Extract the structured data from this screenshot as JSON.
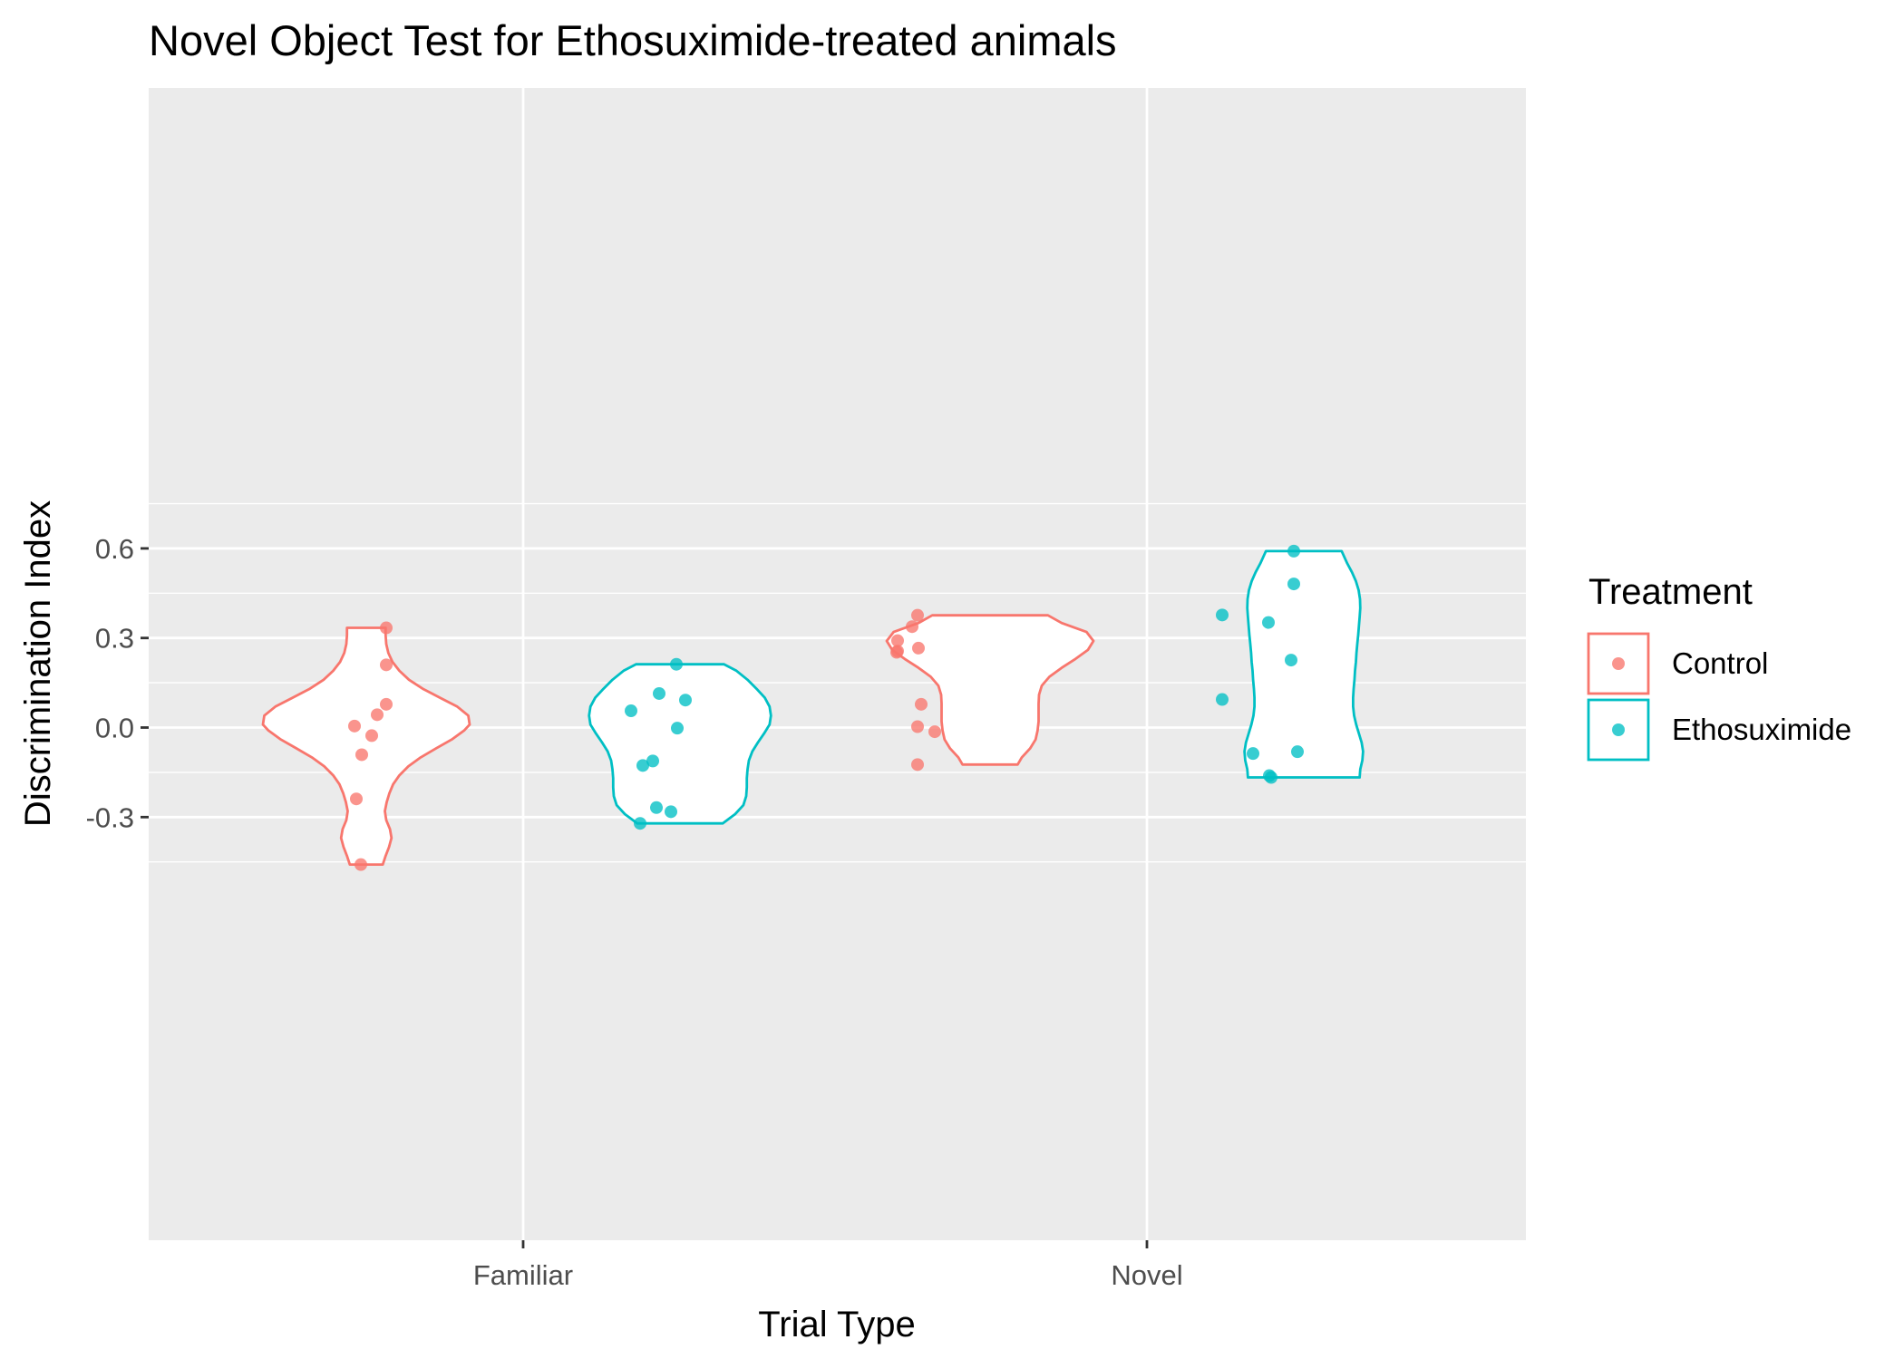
{
  "chart_data": {
    "type": "violin",
    "title": "Novel Object Test for Ethosuximide-treated animals",
    "xlabel": "Trial Type",
    "ylabel": "Discrimination Index",
    "categories": [
      "Familiar",
      "Novel"
    ],
    "ylim": [
      -0.5,
      0.64
    ],
    "yticks": [
      -0.3,
      0.0,
      0.3,
      0.6
    ],
    "yticklabels": [
      "-0.3",
      "0.0",
      "0.3",
      "0.6"
    ],
    "grid": true,
    "legend": {
      "title": "Treatment",
      "position": "right",
      "entries": [
        "Control",
        "Ethosuximide"
      ]
    },
    "series": [
      {
        "name": "Control",
        "color": "#F8766D",
        "groups": [
          {
            "category": "Familiar",
            "points": [
              0.334,
              0.21,
              0.078,
              0.043,
              0.005,
              -0.027,
              -0.091,
              -0.239,
              -0.459
            ],
            "violin_profile": [
              [
                -0.459,
                0.12
              ],
              [
                -0.43,
                0.14
              ],
              [
                -0.4,
                0.165
              ],
              [
                -0.37,
                0.183
              ],
              [
                -0.34,
                0.172
              ],
              [
                -0.31,
                0.145
              ],
              [
                -0.28,
                0.135
              ],
              [
                -0.25,
                0.148
              ],
              [
                -0.22,
                0.168
              ],
              [
                -0.19,
                0.195
              ],
              [
                -0.16,
                0.24
              ],
              [
                -0.13,
                0.305
              ],
              [
                -0.1,
                0.395
              ],
              [
                -0.07,
                0.505
              ],
              [
                -0.04,
                0.62
              ],
              [
                -0.01,
                0.71
              ],
              [
                0.01,
                0.75
              ],
              [
                0.04,
                0.74
              ],
              [
                0.07,
                0.66
              ],
              [
                0.1,
                0.535
              ],
              [
                0.13,
                0.41
              ],
              [
                0.16,
                0.31
              ],
              [
                0.19,
                0.24
              ],
              [
                0.22,
                0.19
              ],
              [
                0.25,
                0.16
              ],
              [
                0.28,
                0.145
              ],
              [
                0.31,
                0.14
              ],
              [
                0.334,
                0.14
              ]
            ]
          },
          {
            "category": "Novel",
            "points": [
              0.376,
              0.338,
              0.291,
              0.266,
              0.256,
              0.252,
              0.078,
              0.003,
              -0.014,
              -0.124
            ],
            "violin_profile": [
              [
                -0.124,
                0.2
              ],
              [
                -0.1,
                0.23
              ],
              [
                -0.07,
                0.29
              ],
              [
                -0.04,
                0.33
              ],
              [
                -0.01,
                0.345
              ],
              [
                0.02,
                0.352
              ],
              [
                0.05,
                0.352
              ],
              [
                0.08,
                0.352
              ],
              [
                0.11,
                0.355
              ],
              [
                0.14,
                0.375
              ],
              [
                0.17,
                0.43
              ],
              [
                0.2,
                0.52
              ],
              [
                0.23,
                0.62
              ],
              [
                0.26,
                0.71
              ],
              [
                0.29,
                0.75
              ],
              [
                0.32,
                0.7
              ],
              [
                0.35,
                0.52
              ],
              [
                0.376,
                0.42
              ]
            ]
          }
        ]
      },
      {
        "name": "Ethosuximide",
        "color": "#00BFC4",
        "groups": [
          {
            "category": "Familiar",
            "points": [
              0.212,
              0.114,
              0.092,
              0.056,
              -0.002,
              -0.112,
              -0.127,
              -0.268,
              -0.282,
              -0.321
            ],
            "violin_profile": [
              [
                -0.321,
                0.31
              ],
              [
                -0.29,
                0.4
              ],
              [
                -0.26,
                0.46
              ],
              [
                -0.23,
                0.48
              ],
              [
                -0.2,
                0.485
              ],
              [
                -0.17,
                0.485
              ],
              [
                -0.14,
                0.49
              ],
              [
                -0.11,
                0.5
              ],
              [
                -0.08,
                0.525
              ],
              [
                -0.05,
                0.565
              ],
              [
                -0.02,
                0.61
              ],
              [
                0.01,
                0.65
              ],
              [
                0.04,
                0.66
              ],
              [
                0.07,
                0.65
              ],
              [
                0.1,
                0.615
              ],
              [
                0.13,
                0.555
              ],
              [
                0.16,
                0.49
              ],
              [
                0.19,
                0.41
              ],
              [
                0.212,
                0.32
              ]
            ]
          },
          {
            "category": "Novel",
            "points": [
              0.591,
              0.481,
              0.377,
              0.352,
              0.226,
              0.094,
              -0.081,
              -0.087,
              -0.161,
              -0.167
            ],
            "violin_profile": [
              [
                -0.167,
                0.405
              ],
              [
                -0.14,
                0.41
              ],
              [
                -0.11,
                0.425
              ],
              [
                -0.08,
                0.43
              ],
              [
                -0.05,
                0.42
              ],
              [
                -0.02,
                0.4
              ],
              [
                0.01,
                0.38
              ],
              [
                0.04,
                0.365
              ],
              [
                0.07,
                0.358
              ],
              [
                0.1,
                0.358
              ],
              [
                0.13,
                0.362
              ],
              [
                0.16,
                0.368
              ],
              [
                0.19,
                0.372
              ],
              [
                0.22,
                0.378
              ],
              [
                0.25,
                0.382
              ],
              [
                0.28,
                0.388
              ],
              [
                0.31,
                0.395
              ],
              [
                0.34,
                0.4
              ],
              [
                0.37,
                0.405
              ],
              [
                0.4,
                0.41
              ],
              [
                0.43,
                0.408
              ],
              [
                0.46,
                0.398
              ],
              [
                0.49,
                0.378
              ],
              [
                0.52,
                0.35
              ],
              [
                0.55,
                0.315
              ],
              [
                0.591,
                0.275
              ]
            ]
          }
        ]
      }
    ]
  }
}
